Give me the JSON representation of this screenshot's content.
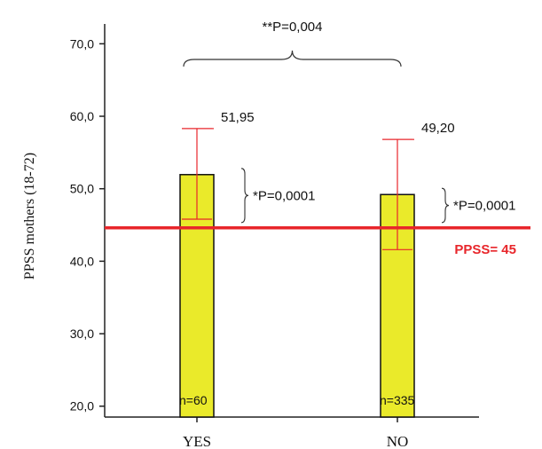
{
  "chart_data": {
    "type": "bar",
    "ylabel": "PPSS mothers (18-72)",
    "ylim": [
      18.5,
      72
    ],
    "yticks": [
      20,
      30,
      40,
      50,
      60,
      70
    ],
    "ytick_labels": [
      "20,0",
      "30,0",
      "40,0",
      "50,0",
      "60,0",
      "70,0"
    ],
    "categories": [
      "YES",
      "NO"
    ],
    "values": [
      51.95,
      49.2
    ],
    "value_labels": [
      "51,95",
      "49,20"
    ],
    "error_low": [
      45.8,
      41.6
    ],
    "error_high": [
      58.3,
      56.8
    ],
    "n_labels": [
      "n=60",
      "n=335"
    ],
    "within_p_labels": [
      "*P=0,0001",
      "*P=0,0001"
    ],
    "between_p_label": "**P=0,004",
    "reference_line": {
      "value": 44.6,
      "label": "PPSS= 45",
      "color": "#e8262b"
    },
    "bar_color": "#eaea2a",
    "error_color": "#e8262b",
    "grid": false
  }
}
